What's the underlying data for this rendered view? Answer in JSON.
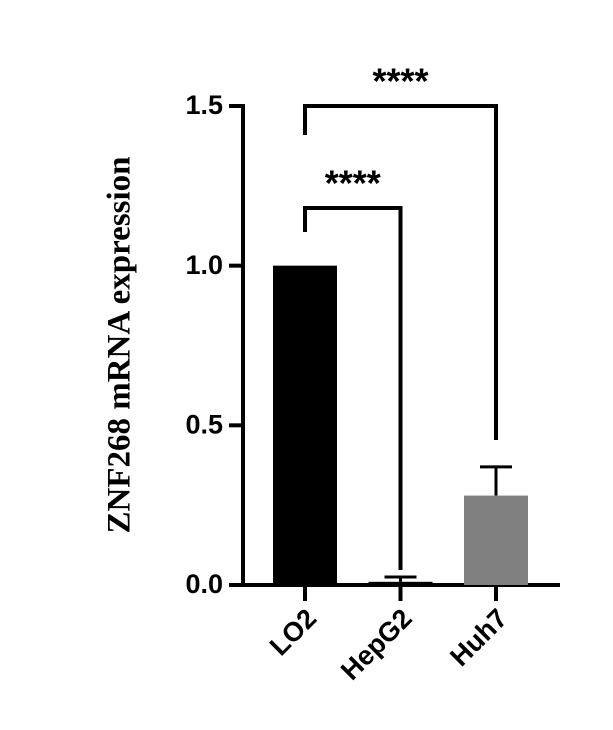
{
  "chart_data": {
    "type": "bar",
    "ylabel": "ZNF268 mRNA expression",
    "categories": [
      "LO2",
      "HepG2",
      "Huh7"
    ],
    "values": [
      1.0,
      0.01,
      0.28
    ],
    "errors": [
      null,
      0.015,
      0.09
    ],
    "colors": [
      "#000000",
      "#000000",
      "#808080"
    ],
    "ylim": [
      0,
      1.5
    ],
    "yticks": [
      {
        "value": 0,
        "label": "0.0"
      },
      0.5,
      {
        "value": 1,
        "label": "1.0"
      },
      1.5
    ],
    "annotations": [
      {
        "text": "****",
        "from": 0,
        "to": 1
      },
      {
        "text": "****",
        "from": 0,
        "to": 2
      }
    ]
  }
}
